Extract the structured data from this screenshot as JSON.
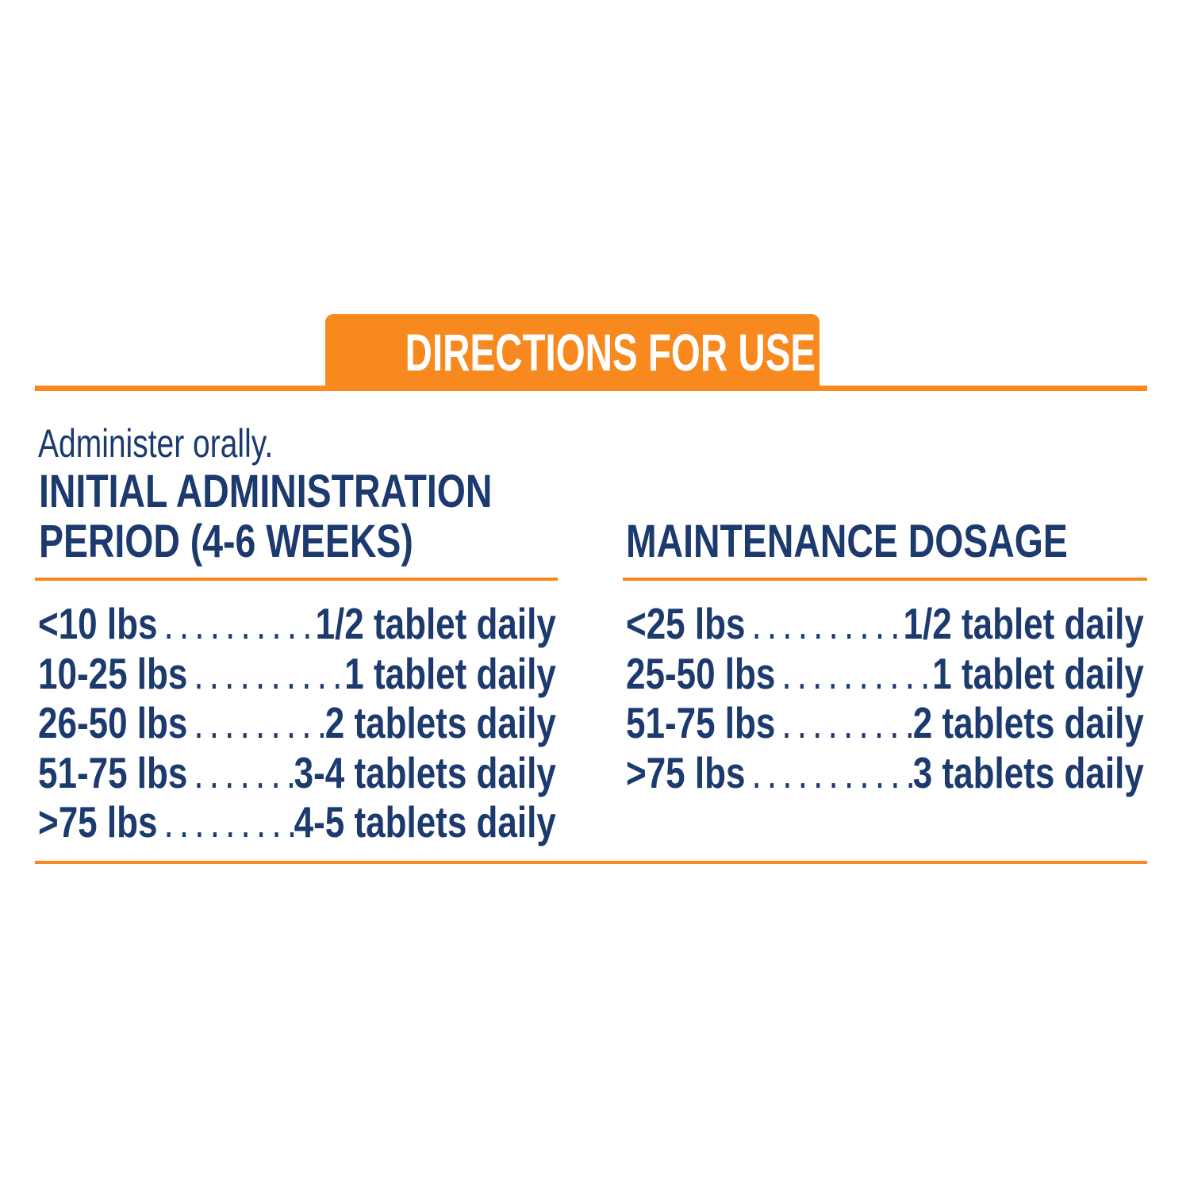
{
  "banner": {
    "title": "DIRECTIONS FOR USE"
  },
  "intro": "Administer orally.",
  "initial": {
    "heading_line1": "INITIAL ADMINISTRATION",
    "heading_line2": "PERIOD (4-6 WEEKS)",
    "rows": [
      {
        "weight": "<10 lbs",
        "dose": "1/2 tablet daily"
      },
      {
        "weight": "10-25 lbs",
        "dose": "1 tablet daily"
      },
      {
        "weight": "26-50 lbs",
        "dose": "2 tablets daily"
      },
      {
        "weight": "51-75 lbs",
        "dose": "3-4 tablets daily"
      },
      {
        "weight": ">75 lbs",
        "dose": "4-5 tablets daily"
      }
    ]
  },
  "maintenance": {
    "heading": "MAINTENANCE DOSAGE",
    "rows": [
      {
        "weight": "<25 lbs",
        "dose": "1/2 tablet daily"
      },
      {
        "weight": "25-50 lbs",
        "dose": "1 tablet daily"
      },
      {
        "weight": "51-75 lbs",
        "dose": "2 tablets daily"
      },
      {
        "weight": ">75 lbs",
        "dose": "3 tablets daily"
      }
    ]
  },
  "colors": {
    "accent": "#f7891e",
    "text": "#1c3a6e"
  }
}
